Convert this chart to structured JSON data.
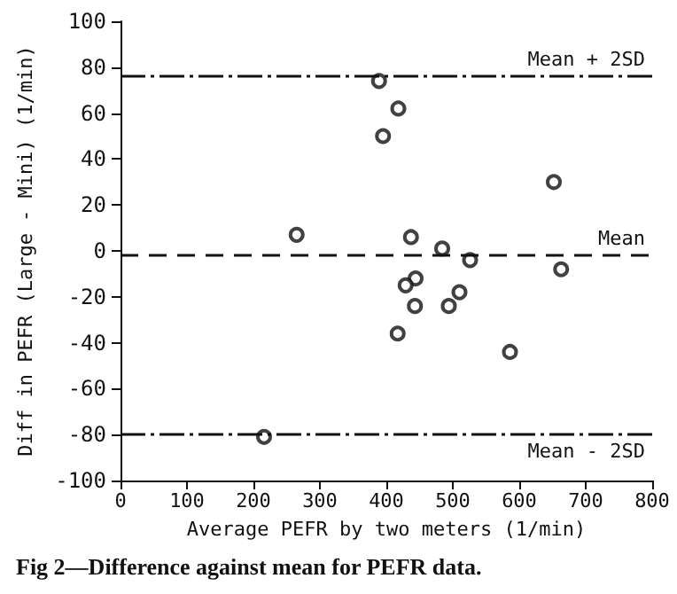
{
  "chart_data": {
    "type": "scatter",
    "title": "Fig 2—Difference against mean for PEFR data.",
    "xlabel": "Average PEFR by two meters (1/min)",
    "ylabel": "Diff in PEFR (Large - Mini) (1/min)",
    "x": [
      389,
      418,
      395,
      652,
      265,
      437,
      484,
      526,
      663,
      444,
      429,
      510,
      443,
      494,
      417,
      586,
      216
    ],
    "values": [
      74,
      62,
      50,
      30,
      7,
      6,
      1,
      -4,
      -8,
      -12,
      -15,
      -18,
      -24,
      -24,
      -36,
      -44,
      -81
    ],
    "color": "#111111",
    "marker": "circle",
    "xlim": [
      0,
      800
    ],
    "xticks": [
      0,
      100,
      200,
      300,
      400,
      500,
      600,
      700,
      800
    ],
    "ylim": [
      -100,
      100
    ],
    "yticks": [
      -100,
      -80,
      -60,
      -40,
      -20,
      0,
      20,
      40,
      60,
      80,
      100
    ],
    "grid": false,
    "ref_lines": [
      {
        "axis": "y",
        "value": 76,
        "label": "Mean + 2SD",
        "line_style": "dashdot",
        "color": "#111111"
      },
      {
        "axis": "y",
        "value": -2,
        "label": "Mean",
        "line_style": "dashed",
        "color": "#111111"
      },
      {
        "axis": "y",
        "value": -80,
        "label": "Mean - 2SD",
        "line_style": "dashdot",
        "color": "#111111"
      }
    ]
  }
}
